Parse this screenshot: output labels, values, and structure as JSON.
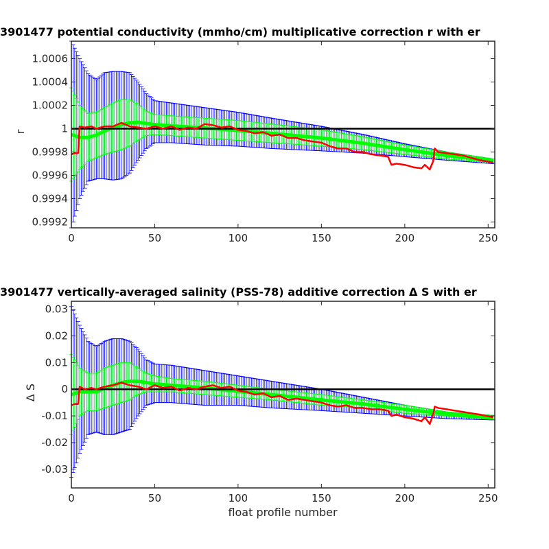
{
  "figure": {
    "background": "#ffffff",
    "colors": {
      "outer_error": "#0000ff",
      "inner_error": "#00ff00",
      "correction": "#ff0000",
      "reference": "#000000"
    }
  },
  "chart_data": [
    {
      "type": "line",
      "title": "3901477 potential conductivity (mmho/cm) multiplicative correction r with er",
      "xlabel": "",
      "ylabel": "r",
      "xlim": [
        0,
        254
      ],
      "ylim": [
        0.99915,
        1.00075
      ],
      "xticks": [
        0,
        50,
        100,
        150,
        200,
        250
      ],
      "xtick_labels": [
        "0",
        "50",
        "100",
        "150",
        "200",
        "250"
      ],
      "yticks": [
        0.9992,
        0.9994,
        0.9996,
        0.9998,
        1.0,
        1.0002,
        1.0004,
        1.0006
      ],
      "ytick_labels": [
        "0.9992",
        "0.9994",
        "0.9996",
        "0.9998",
        "1",
        "1.0002",
        "1.0004",
        "1.0006"
      ],
      "reference_line": 1.0,
      "grid": false,
      "series": [
        {
          "role": "outer_error_bounds",
          "x": [
            0,
            5,
            10,
            15,
            20,
            25,
            30,
            35,
            40,
            45,
            50,
            60,
            80,
            100,
            120,
            150,
            175,
            200,
            225,
            253
          ],
          "upper": [
            1.00075,
            1.0006,
            1.00047,
            1.00042,
            1.00048,
            1.00049,
            1.00049,
            1.00048,
            1.0004,
            1.0003,
            1.00024,
            1.00022,
            1.00018,
            1.00014,
            1.00009,
            1.00002,
            0.99995,
            0.99987,
            0.9998,
            0.99974
          ],
          "lower": [
            0.99915,
            0.9994,
            0.99955,
            0.99957,
            0.99957,
            0.99956,
            0.99957,
            0.99962,
            0.99973,
            0.99983,
            0.99988,
            0.99988,
            0.99986,
            0.99985,
            0.99983,
            0.99981,
            0.99979,
            0.99976,
            0.99973,
            0.9997
          ]
        },
        {
          "role": "inner_error_bounds",
          "x": [
            0,
            5,
            10,
            15,
            20,
            25,
            30,
            35,
            40,
            45,
            50,
            60,
            80,
            100,
            120,
            150,
            175,
            200,
            225,
            253
          ],
          "upper": [
            1.00035,
            1.0002,
            1.00013,
            1.00014,
            1.00018,
            1.00022,
            1.00025,
            1.00025,
            1.00021,
            1.00015,
            1.00012,
            1.00011,
            1.00009,
            1.00007,
            1.00004,
            0.99999,
            0.99993,
            0.99986,
            0.9998,
            0.99974
          ],
          "lower": [
            0.99955,
            0.99965,
            0.99972,
            0.99975,
            0.99978,
            0.9998,
            0.99982,
            0.99985,
            0.9999,
            0.99994,
            0.99995,
            0.99994,
            0.99992,
            0.9999,
            0.99988,
            0.99985,
            0.99982,
            0.99978,
            0.99974,
            0.99971
          ]
        },
        {
          "role": "correction",
          "x": [
            0,
            2,
            4,
            5,
            8,
            12,
            15,
            20,
            25,
            30,
            35,
            40,
            45,
            50,
            55,
            60,
            65,
            70,
            75,
            80,
            85,
            90,
            95,
            100,
            105,
            110,
            115,
            120,
            125,
            130,
            135,
            140,
            145,
            150,
            155,
            160,
            165,
            170,
            175,
            180,
            185,
            190,
            192,
            195,
            200,
            205,
            210,
            212,
            215,
            217,
            218,
            220,
            225,
            230,
            235,
            240,
            245,
            253
          ],
          "y": [
            0.99978,
            0.99979,
            0.99979,
            1.00002,
            1.00001,
            1.00002,
            1.0,
            1.00002,
            1.00002,
            1.00005,
            1.00002,
            1.00001,
            1.0,
            1.00002,
            1.0,
            1.00002,
            0.99999,
            1.00001,
            1.0,
            1.00004,
            1.00003,
            1.00001,
            1.00002,
            0.99999,
            0.99998,
            0.99996,
            0.99997,
            0.99994,
            0.99995,
            0.99992,
            0.99992,
            0.9999,
            0.99989,
            0.99988,
            0.99985,
            0.99983,
            0.99983,
            0.9998,
            0.9998,
            0.99978,
            0.99977,
            0.99976,
            0.99969,
            0.9997,
            0.99969,
            0.99967,
            0.99966,
            0.99969,
            0.99965,
            0.99972,
            0.99983,
            0.9998,
            0.99979,
            0.99978,
            0.99977,
            0.99975,
            0.99973,
            0.99971
          ]
        }
      ]
    },
    {
      "type": "line",
      "title": "3901477 vertically-averaged salinity (PSS-78) additive correction Δ S with er",
      "xlabel": "float profile number",
      "ylabel": "Δ S",
      "xlim": [
        0,
        254
      ],
      "ylim": [
        -0.037,
        0.033
      ],
      "xticks": [
        0,
        50,
        100,
        150,
        200,
        250
      ],
      "xtick_labels": [
        "0",
        "50",
        "100",
        "150",
        "200",
        "250"
      ],
      "yticks": [
        -0.03,
        -0.02,
        -0.01,
        0,
        0.01,
        0.02,
        0.03
      ],
      "ytick_labels": [
        "-0.03",
        "-0.02",
        "-0.01",
        "0",
        "0.01",
        "0.02",
        "0.03"
      ],
      "reference_line": 0,
      "grid": false,
      "series": [
        {
          "role": "outer_error_bounds",
          "x": [
            0,
            5,
            10,
            15,
            20,
            25,
            30,
            35,
            40,
            45,
            50,
            60,
            80,
            100,
            120,
            150,
            175,
            200,
            225,
            253
          ],
          "upper": [
            0.031,
            0.024,
            0.018,
            0.016,
            0.018,
            0.019,
            0.019,
            0.018,
            0.015,
            0.011,
            0.0095,
            0.009,
            0.007,
            0.005,
            0.003,
            0.0,
            -0.003,
            -0.006,
            -0.0085,
            -0.0098
          ],
          "lower": [
            -0.033,
            -0.024,
            -0.017,
            -0.016,
            -0.017,
            -0.017,
            -0.016,
            -0.015,
            -0.01,
            -0.006,
            -0.005,
            -0.005,
            -0.006,
            -0.006,
            -0.007,
            -0.008,
            -0.009,
            -0.01,
            -0.011,
            -0.0115
          ]
        },
        {
          "role": "inner_error_bounds",
          "x": [
            0,
            5,
            10,
            15,
            20,
            25,
            30,
            35,
            40,
            45,
            50,
            60,
            80,
            100,
            120,
            150,
            175,
            200,
            225,
            253
          ],
          "upper": [
            0.013,
            0.008,
            0.006,
            0.006,
            0.008,
            0.009,
            0.01,
            0.01,
            0.008,
            0.006,
            0.005,
            0.004,
            0.003,
            0.0015,
            0.0,
            -0.002,
            -0.004,
            -0.006,
            -0.0085,
            -0.0098
          ],
          "lower": [
            -0.017,
            -0.01,
            -0.008,
            -0.008,
            -0.007,
            -0.006,
            -0.005,
            -0.004,
            -0.002,
            -0.001,
            -0.001,
            -0.001,
            -0.002,
            -0.003,
            -0.004,
            -0.006,
            -0.007,
            -0.009,
            -0.01,
            -0.0113
          ]
        },
        {
          "role": "correction",
          "x": [
            0,
            2,
            4,
            5,
            8,
            12,
            15,
            20,
            25,
            30,
            35,
            40,
            45,
            50,
            55,
            60,
            65,
            70,
            75,
            80,
            85,
            90,
            95,
            100,
            105,
            110,
            115,
            120,
            125,
            130,
            135,
            140,
            145,
            150,
            155,
            160,
            165,
            170,
            175,
            180,
            185,
            190,
            192,
            195,
            200,
            205,
            210,
            212,
            215,
            217,
            218,
            220,
            225,
            230,
            235,
            240,
            245,
            253
          ],
          "y": [
            -0.006,
            -0.0055,
            -0.0055,
            0.001,
            0.0,
            0.0005,
            0.0,
            0.001,
            0.0015,
            0.0025,
            0.0015,
            0.001,
            0.0,
            0.0015,
            0.0005,
            0.001,
            -0.0005,
            0.0005,
            0.0,
            0.001,
            0.0015,
            0.0005,
            0.001,
            -0.0005,
            -0.001,
            -0.002,
            -0.0015,
            -0.003,
            -0.0025,
            -0.004,
            -0.0035,
            -0.004,
            -0.0045,
            -0.005,
            -0.006,
            -0.0065,
            -0.006,
            -0.007,
            -0.007,
            -0.0075,
            -0.0075,
            -0.008,
            -0.01,
            -0.0095,
            -0.0105,
            -0.011,
            -0.012,
            -0.0105,
            -0.013,
            -0.0095,
            -0.0065,
            -0.007,
            -0.0075,
            -0.008,
            -0.0085,
            -0.009,
            -0.0095,
            -0.0105
          ]
        }
      ]
    }
  ]
}
